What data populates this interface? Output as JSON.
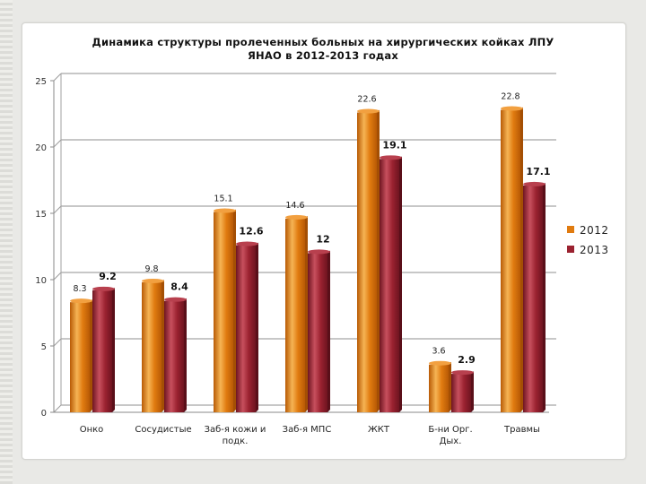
{
  "chart_data": {
    "type": "bar",
    "title_lines": [
      "Динамика структуры пролеченных больных на хирургических койках ЛПУ",
      "ЯНАО в 2012-2013 годах"
    ],
    "categories": [
      [
        "Онко"
      ],
      [
        "Сосудистые"
      ],
      [
        "Заб-я кожи и",
        "подк."
      ],
      [
        "Заб-я МПС"
      ],
      [
        "ЖКТ"
      ],
      [
        "Б-ни Орг.",
        "Дых."
      ],
      [
        "Травмы"
      ]
    ],
    "series": [
      {
        "name": "2012",
        "color": "#e07b10",
        "values": [
          8.3,
          9.8,
          15.1,
          14.6,
          22.6,
          3.6,
          22.8
        ],
        "labels": [
          "8.3",
          "9.8",
          "15.1",
          "14.6",
          "22.6",
          "3.6",
          "22.8"
        ]
      },
      {
        "name": "2013",
        "color": "#9b2230",
        "values": [
          9.2,
          8.4,
          12.6,
          12,
          19.1,
          2.9,
          17.1
        ],
        "labels": [
          "9.2",
          "8.4",
          "12.6",
          "12",
          "19.1",
          "2.9",
          "17.1"
        ]
      }
    ],
    "y_ticks": [
      0,
      5,
      10,
      15,
      20,
      25
    ],
    "ylim": [
      0,
      25
    ],
    "grid": true,
    "legend_position": "right"
  }
}
